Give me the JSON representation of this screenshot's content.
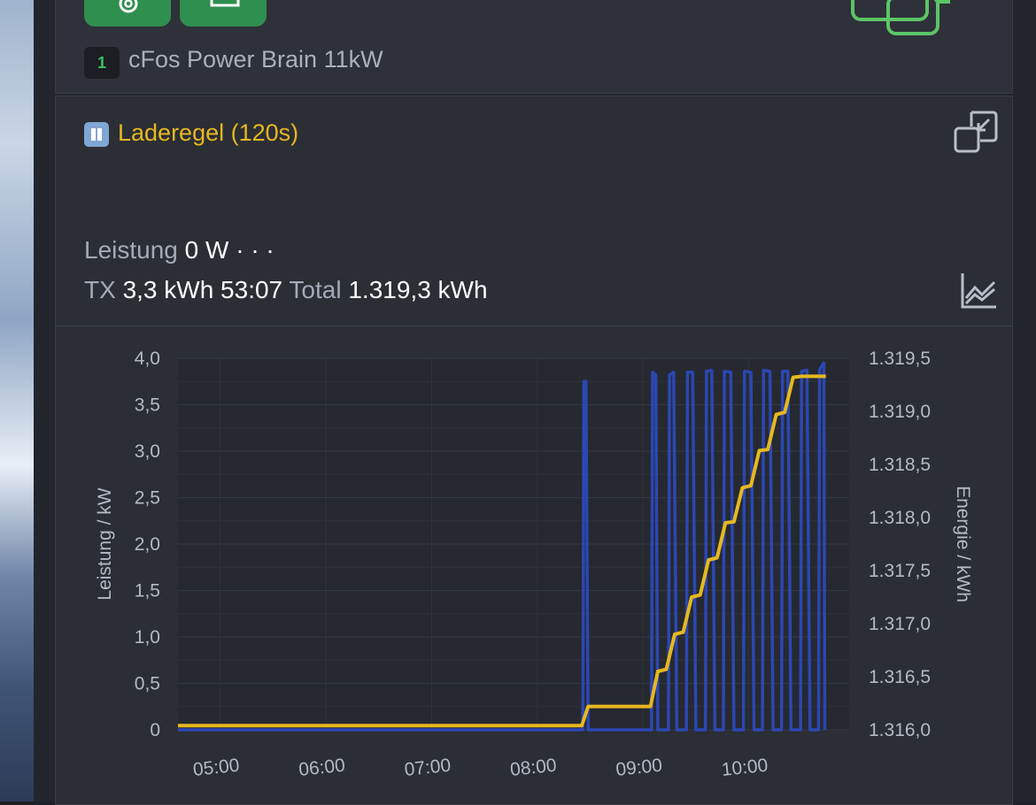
{
  "device": {
    "number": "1",
    "name": "cFos Power Brain 11kW"
  },
  "rule": {
    "title": "Laderegel (120s)"
  },
  "stats": {
    "power_label": "Leistung",
    "power_value": "0 W",
    "more_label": "· · ·",
    "tx_label": "TX",
    "tx_value": "3,3 kWh 53:07",
    "total_label": "Total",
    "total_value": "1.319,3 kWh"
  },
  "colors": {
    "power": "#2b47b3",
    "energy": "#e6b820",
    "accent_green": "#2f8f4f"
  },
  "icons": [
    "gear-icon",
    "device-icon",
    "charger-icon",
    "pause-icon",
    "expand-icon",
    "chart-icon"
  ],
  "chart_data": {
    "type": "line",
    "ylabel": "Leistung / kW",
    "y2label": "Energie / kWh",
    "x_ticks": [
      "05:00",
      "06:00",
      "07:00",
      "08:00",
      "09:00",
      "10:00"
    ],
    "y_ticks": [
      "4,0",
      "3,5",
      "3,0",
      "2,5",
      "2,0",
      "1,5",
      "1,0",
      "0,5",
      "0"
    ],
    "y2_ticks": [
      "1.319,5",
      "1.319,0",
      "1.318,5",
      "1.318,0",
      "1.317,5",
      "1.317,0",
      "1.316,5",
      "1.316,0"
    ],
    "xlim": [
      4.6,
      10.95
    ],
    "ylim": [
      0,
      4.0
    ],
    "y2lim": [
      1316.0,
      1319.5
    ],
    "series": [
      {
        "axis": "left",
        "color": "#2b47b3",
        "x": [
          4.6,
          8.43,
          8.44,
          8.46,
          8.48,
          8.49,
          9.08,
          9.09,
          9.12,
          9.14,
          9.16,
          9.24,
          9.25,
          9.29,
          9.32,
          9.33,
          9.41,
          9.42,
          9.47,
          9.5,
          9.51,
          9.59,
          9.6,
          9.65,
          9.68,
          9.69,
          9.76,
          9.77,
          9.83,
          9.86,
          9.87,
          9.95,
          9.96,
          10.02,
          10.05,
          10.06,
          10.13,
          10.14,
          10.2,
          10.23,
          10.24,
          10.31,
          10.32,
          10.37,
          10.4,
          10.41,
          10.49,
          10.5,
          10.55,
          10.58,
          10.59,
          10.66,
          10.67,
          10.71,
          10.72
        ],
        "y": [
          0,
          0,
          3.75,
          3.75,
          0,
          0,
          0,
          3.85,
          3.82,
          0,
          0,
          0,
          3.82,
          3.85,
          0,
          0,
          0,
          3.85,
          3.85,
          0,
          0,
          0,
          3.86,
          3.87,
          0,
          0,
          0,
          3.86,
          3.85,
          0,
          0,
          0,
          3.86,
          3.85,
          0,
          0,
          0,
          3.87,
          3.86,
          0,
          0,
          0,
          3.86,
          3.86,
          0,
          0,
          0,
          3.86,
          3.87,
          0,
          0,
          0,
          3.88,
          3.95,
          0
        ]
      },
      {
        "axis": "right",
        "color": "#e6b820",
        "x": [
          4.6,
          8.42,
          8.48,
          8.75,
          9.07,
          9.14,
          9.22,
          9.3,
          9.38,
          9.46,
          9.54,
          9.62,
          9.7,
          9.78,
          9.86,
          9.94,
          10.02,
          10.1,
          10.18,
          10.26,
          10.34,
          10.42,
          10.5,
          10.58,
          10.66,
          10.73
        ],
        "y": [
          1316.04,
          1316.04,
          1316.22,
          1316.22,
          1316.22,
          1316.55,
          1316.57,
          1316.9,
          1316.92,
          1317.25,
          1317.27,
          1317.6,
          1317.62,
          1317.95,
          1317.96,
          1318.28,
          1318.3,
          1318.63,
          1318.64,
          1318.97,
          1318.99,
          1319.32,
          1319.33,
          1319.33,
          1319.33,
          1319.33
        ]
      }
    ]
  }
}
